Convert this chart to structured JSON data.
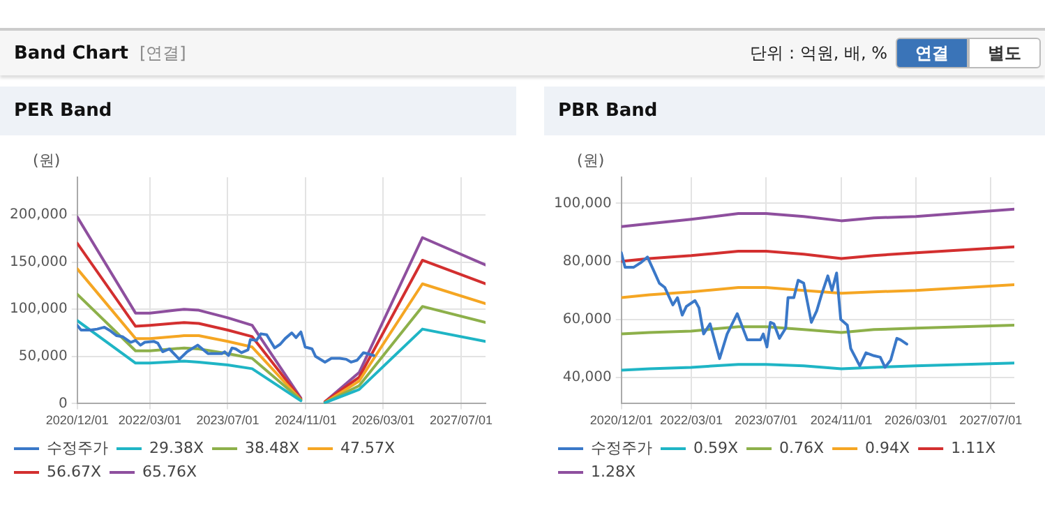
{
  "chart_data": [
    {
      "type": "other",
      "title": "Band Chart",
      "subtitle": "[연결]",
      "annotations": [
        "단위 : 억원, 배, %",
        "연결",
        "별도"
      ]
    },
    {
      "type": "line",
      "title": "PER Band",
      "ylabel": "(원)",
      "xlim": [
        "2020-12-01",
        "2027-12-01"
      ],
      "ylim": [
        0,
        240000
      ],
      "yticks": [
        0,
        {
          "value": 50000,
          "label": "50,000"
        },
        {
          "value": 100000,
          "label": "100,000"
        },
        {
          "value": 150000,
          "label": "150,000"
        },
        {
          "value": 200000,
          "label": "200,000"
        }
      ],
      "xticks": [
        {
          "value": "2020-12-01",
          "label": "2020/12/01"
        },
        {
          "value": "2022-03-01",
          "label": "2022/03/01"
        },
        {
          "value": "2023-07-01",
          "label": "2023/07/01"
        },
        {
          "value": "2024-11-01",
          "label": "2024/11/01"
        },
        {
          "value": "2026-03-01",
          "label": "2026/03/01"
        },
        {
          "value": "2027-07-01",
          "label": "2027/07/01"
        }
      ],
      "grid": true,
      "legend": "bottom",
      "marker": "none",
      "line_style": "solid",
      "series": [
        {
          "name": "수정주가",
          "color": "#3a78c8",
          "x": [
            "2020-12-01",
            "2020-12-25",
            "2021-02-20",
            "2021-04-05",
            "2021-05-20",
            "2021-06-28",
            "2021-08-05",
            "2021-09-10",
            "2021-11-01",
            "2021-12-01",
            "2022-01-01",
            "2022-01-28",
            "2022-03-25",
            "2022-04-20",
            "2022-05-20",
            "2022-07-01",
            "2022-09-01",
            "2022-10-20",
            "2022-12-25",
            "2023-02-28",
            "2023-05-25",
            "2023-06-12",
            "2023-07-06",
            "2023-07-28",
            "2023-08-20",
            "2023-09-25",
            "2023-11-05",
            "2023-11-20",
            "2023-12-28",
            "2024-01-25",
            "2024-03-01",
            "2024-04-20",
            "2024-05-25",
            "2024-06-25",
            "2024-08-05",
            "2024-09-01",
            "2024-10-01",
            "2024-10-28",
            "2024-12-10",
            "2025-01-01",
            "2025-03-01",
            "2025-04-10",
            "2025-06-01",
            "2025-07-12",
            "2025-08-12",
            "2025-09-18",
            "2025-10-28",
            "2025-11-20",
            "2026-01-01"
          ],
          "values": [
            83000,
            78000,
            78000,
            79000,
            81000,
            77000,
            72000,
            71000,
            65000,
            67000,
            62000,
            65000,
            66000,
            64000,
            55000,
            58000,
            47000,
            55000,
            62000,
            53000,
            53000,
            55000,
            51000,
            59000,
            58000,
            54000,
            57000,
            68000,
            67000,
            74000,
            73000,
            59000,
            63000,
            69000,
            75000,
            70000,
            76000,
            60000,
            58000,
            50000,
            44000,
            48000,
            48000,
            47000,
            44000,
            46000,
            54000,
            53000,
            51000
          ]
        },
        {
          "name": "29.38X",
          "color": "#1fb5c5",
          "x": [
            "2020-12-01",
            "2021-12-01",
            "2022-03-01",
            "2022-10-01",
            "2023-01-01",
            "2023-07-01",
            "2023-12-01",
            "2024-10-01",
            "2024-12-01",
            "2025-03-01",
            "2025-10-01",
            "2026-11-01",
            "2027-12-01"
          ],
          "values": [
            88000,
            43000,
            43000,
            45000,
            44000,
            41000,
            37000,
            3000,
            null,
            1000,
            15000,
            79000,
            66000
          ]
        },
        {
          "name": "38.48X",
          "color": "#8db04a",
          "x": [
            "2020-12-01",
            "2021-12-01",
            "2022-03-01",
            "2022-10-01",
            "2023-01-01",
            "2023-07-01",
            "2023-12-01",
            "2024-10-01",
            "2024-12-01",
            "2025-03-01",
            "2025-10-01",
            "2026-11-01",
            "2027-12-01"
          ],
          "values": [
            116000,
            56000,
            56000,
            59000,
            58000,
            53000,
            48000,
            4000,
            null,
            1000,
            19000,
            103000,
            86000
          ]
        },
        {
          "name": "47.57X",
          "color": "#f5a623",
          "x": [
            "2020-12-01",
            "2021-12-01",
            "2022-03-01",
            "2022-10-01",
            "2023-01-01",
            "2023-07-01",
            "2023-12-01",
            "2024-10-01",
            "2024-12-01",
            "2025-03-01",
            "2025-10-01",
            "2026-11-01",
            "2027-12-01"
          ],
          "values": [
            143000,
            69000,
            69000,
            72000,
            72000,
            66000,
            60000,
            4000,
            null,
            1000,
            24000,
            127000,
            106000
          ]
        },
        {
          "name": "56.67X",
          "color": "#d32f2f",
          "x": [
            "2020-12-01",
            "2021-12-01",
            "2022-03-01",
            "2022-10-01",
            "2023-01-01",
            "2023-07-01",
            "2023-12-01",
            "2024-10-01",
            "2024-12-01",
            "2025-03-01",
            "2025-10-01",
            "2026-11-01",
            "2027-12-01"
          ],
          "values": [
            170000,
            82000,
            83000,
            86000,
            85000,
            78000,
            71000,
            5000,
            null,
            2000,
            28000,
            152000,
            127000
          ]
        },
        {
          "name": "65.76X",
          "color": "#8e4f9e",
          "x": [
            "2020-12-01",
            "2021-12-01",
            "2022-03-01",
            "2022-10-01",
            "2023-01-01",
            "2023-07-01",
            "2023-12-01",
            "2024-10-01",
            "2024-12-01",
            "2025-03-01",
            "2025-10-01",
            "2026-11-01",
            "2027-12-01"
          ],
          "values": [
            198000,
            96000,
            96000,
            100000,
            99000,
            91000,
            83000,
            6000,
            null,
            2000,
            33000,
            176000,
            147000
          ]
        }
      ]
    },
    {
      "type": "line",
      "title": "PBR Band",
      "ylabel": "(원)",
      "xlim": [
        "2020-12-01",
        "2027-12-01"
      ],
      "ylim": [
        31000,
        109000
      ],
      "yticks": [
        {
          "value": 40000,
          "label": "40,000"
        },
        {
          "value": 60000,
          "label": "60,000"
        },
        {
          "value": 80000,
          "label": "80,000"
        },
        {
          "value": 100000,
          "label": "100,000"
        }
      ],
      "xticks": [
        {
          "value": "2020-12-01",
          "label": "2020/12/01"
        },
        {
          "value": "2022-03-01",
          "label": "2022/03/01"
        },
        {
          "value": "2023-07-01",
          "label": "2023/07/01"
        },
        {
          "value": "2024-11-01",
          "label": "2024/11/01"
        },
        {
          "value": "2026-03-01",
          "label": "2026/03/01"
        },
        {
          "value": "2027-07-01",
          "label": "2027/07/01"
        }
      ],
      "grid": true,
      "legend": "bottom",
      "marker": "none",
      "line_style": "solid",
      "series": [
        {
          "name": "수정주가",
          "color": "#3a78c8",
          "x": [
            "2020-12-01",
            "2020-12-25",
            "2021-02-20",
            "2021-04-05",
            "2021-05-20",
            "2021-06-28",
            "2021-08-05",
            "2021-09-10",
            "2021-11-01",
            "2021-12-01",
            "2022-01-01",
            "2022-01-28",
            "2022-03-25",
            "2022-04-20",
            "2022-05-20",
            "2022-07-01",
            "2022-09-01",
            "2022-10-20",
            "2022-12-25",
            "2023-02-28",
            "2023-05-25",
            "2023-06-12",
            "2023-07-06",
            "2023-07-28",
            "2023-08-20",
            "2023-09-25",
            "2023-11-05",
            "2023-11-20",
            "2023-12-28",
            "2024-01-25",
            "2024-03-01",
            "2024-04-20",
            "2024-05-25",
            "2024-06-25",
            "2024-08-05",
            "2024-09-01",
            "2024-10-01",
            "2024-10-28",
            "2024-12-10",
            "2025-01-01",
            "2025-03-01",
            "2025-04-10",
            "2025-06-01",
            "2025-07-12",
            "2025-08-12",
            "2025-09-18",
            "2025-10-28",
            "2025-11-20",
            "2026-01-01"
          ],
          "values": [
            83000,
            78000,
            78000,
            79500,
            81500,
            77000,
            72500,
            71000,
            65000,
            67500,
            61500,
            64500,
            66500,
            64000,
            55000,
            58500,
            46500,
            55000,
            62000,
            53000,
            53000,
            55000,
            50500,
            59000,
            58500,
            53500,
            57000,
            67500,
            67500,
            73500,
            72500,
            59000,
            63000,
            68500,
            75000,
            70000,
            76000,
            60000,
            58000,
            50000,
            44000,
            48500,
            47500,
            47000,
            43500,
            46000,
            53500,
            53000,
            51500
          ]
        },
        {
          "name": "0.59X",
          "color": "#1fb5c5",
          "x": [
            "2020-12-01",
            "2021-06-01",
            "2022-03-01",
            "2023-01-01",
            "2023-07-01",
            "2024-03-01",
            "2024-11-01",
            "2025-06-01",
            "2026-03-01",
            "2027-12-01"
          ],
          "values": [
            42500,
            43000,
            43500,
            44500,
            44500,
            44000,
            43000,
            43500,
            44000,
            45000
          ]
        },
        {
          "name": "0.76X",
          "color": "#8db04a",
          "x": [
            "2020-12-01",
            "2021-06-01",
            "2022-03-01",
            "2023-01-01",
            "2023-07-01",
            "2024-03-01",
            "2024-11-01",
            "2025-06-01",
            "2026-03-01",
            "2027-12-01"
          ],
          "values": [
            55000,
            55500,
            56000,
            57500,
            57500,
            56500,
            55500,
            56500,
            57000,
            58000
          ]
        },
        {
          "name": "0.94X",
          "color": "#f5a623",
          "x": [
            "2020-12-01",
            "2021-06-01",
            "2022-03-01",
            "2023-01-01",
            "2023-07-01",
            "2024-03-01",
            "2024-11-01",
            "2025-06-01",
            "2026-03-01",
            "2027-12-01"
          ],
          "values": [
            67500,
            68500,
            69500,
            71000,
            71000,
            70000,
            69000,
            69500,
            70000,
            72000
          ]
        },
        {
          "name": "1.11X",
          "color": "#d32f2f",
          "x": [
            "2020-12-01",
            "2021-06-01",
            "2022-03-01",
            "2023-01-01",
            "2023-07-01",
            "2024-03-01",
            "2024-11-01",
            "2025-06-01",
            "2026-03-01",
            "2027-12-01"
          ],
          "values": [
            80000,
            81000,
            82000,
            83500,
            83500,
            82500,
            81000,
            82000,
            83000,
            85000
          ]
        },
        {
          "name": "1.28X",
          "color": "#8e4f9e",
          "x": [
            "2020-12-01",
            "2021-06-01",
            "2022-03-01",
            "2023-01-01",
            "2023-07-01",
            "2024-03-01",
            "2024-11-01",
            "2025-06-01",
            "2026-03-01",
            "2027-12-01"
          ],
          "values": [
            92000,
            93000,
            94500,
            96500,
            96500,
            95500,
            94000,
            95000,
            95500,
            98000
          ]
        }
      ]
    }
  ]
}
